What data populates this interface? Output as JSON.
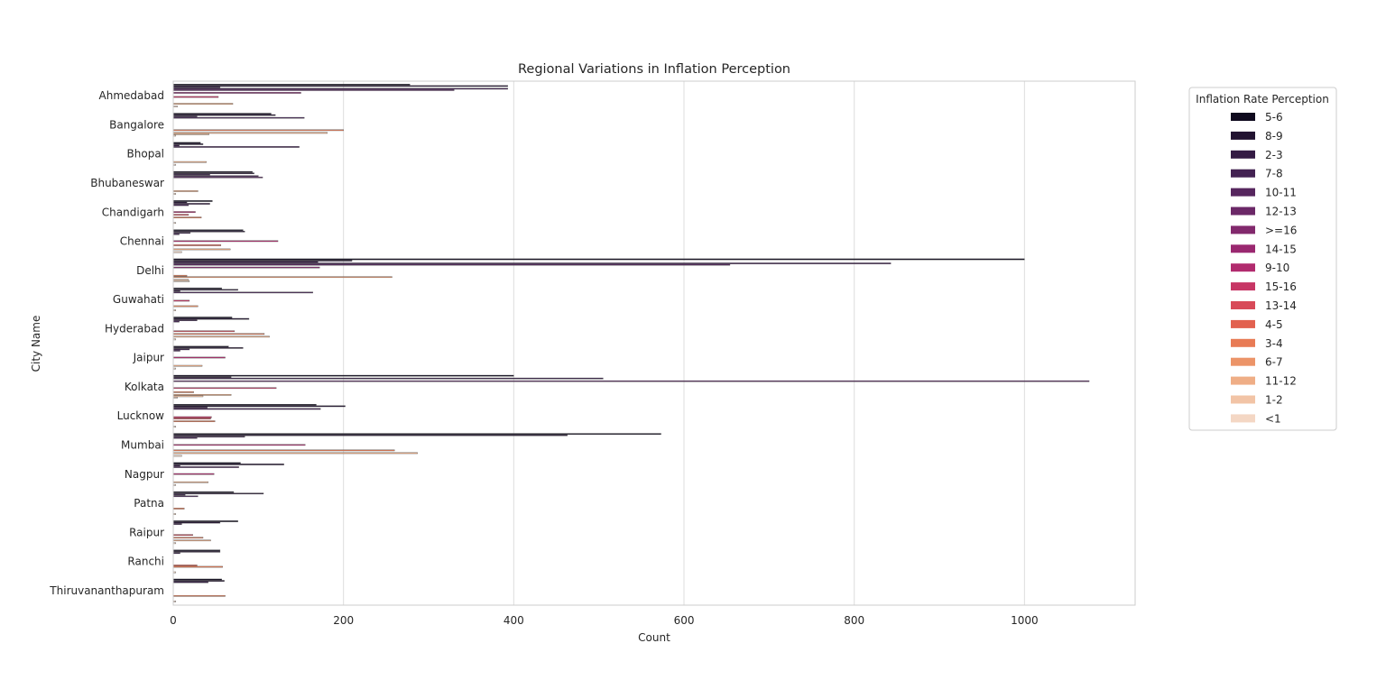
{
  "chart_data": {
    "type": "bar",
    "orientation": "horizontal",
    "title": "Regional Variations in Inflation Perception",
    "xlabel": "Count",
    "ylabel": "City Name",
    "xlim": [
      0,
      1130
    ],
    "xticks": [
      "0",
      "200",
      "400",
      "600",
      "800",
      "1000"
    ],
    "grid": true,
    "legend_placement": "outside-top-right",
    "legend_title": "Inflation Rate Perception",
    "categories": [
      "Ahmedabad",
      "Bangalore",
      "Bhopal",
      "Bhubaneswar",
      "Chandigarh",
      "Chennai",
      "Delhi",
      "Guwahati",
      "Hyderabad",
      "Jaipur",
      "Kolkata",
      "Lucknow",
      "Mumbai",
      "Nagpur",
      "Patna",
      "Raipur",
      "Ranchi",
      "Thiruvananthapuram"
    ],
    "series": [
      {
        "name": "5-6",
        "color": "#0f0a1e",
        "values": [
          278,
          115,
          32,
          93,
          46,
          82,
          1000,
          57,
          69,
          65,
          400,
          168,
          573,
          79,
          71,
          76,
          55,
          57
        ]
      },
      {
        "name": "8-9",
        "color": "#221331",
        "values": [
          393,
          120,
          35,
          95,
          16,
          84,
          210,
          76,
          89,
          82,
          68,
          202,
          463,
          130,
          106,
          55,
          55,
          60
        ]
      },
      {
        "name": "2-3",
        "color": "#341b44",
        "values": [
          55,
          28,
          7,
          43,
          43,
          20,
          170,
          8,
          28,
          19,
          505,
          40,
          84,
          8,
          14,
          10,
          8,
          41
        ]
      },
      {
        "name": "7-8",
        "color": "#432252",
        "values": [
          393,
          154,
          148,
          100,
          18,
          7,
          843,
          164,
          7,
          8,
          0,
          173,
          28,
          77,
          29,
          0,
          0,
          0
        ]
      },
      {
        "name": "10-11",
        "color": "#56265e",
        "values": [
          330,
          0,
          0,
          105,
          0,
          0,
          654,
          0,
          0,
          0,
          1076,
          0,
          0,
          0,
          0,
          0,
          0,
          0
        ]
      },
      {
        "name": "12-13",
        "color": "#6b2867",
        "values": [
          0,
          0,
          0,
          0,
          0,
          0,
          0,
          0,
          0,
          0,
          0,
          0,
          0,
          0,
          0,
          0,
          0,
          0
        ]
      },
      {
        "name": ">=16",
        "color": "#82296d",
        "values": [
          150,
          0,
          0,
          0,
          0,
          0,
          172,
          0,
          0,
          0,
          0,
          0,
          0,
          0,
          0,
          0,
          0,
          0
        ]
      },
      {
        "name": "14-15",
        "color": "#9a2870",
        "values": [
          0,
          0,
          0,
          0,
          0,
          0,
          0,
          0,
          0,
          0,
          0,
          0,
          0,
          0,
          0,
          0,
          0,
          0
        ]
      },
      {
        "name": "9-10",
        "color": "#b12b6e",
        "values": [
          0,
          0,
          0,
          0,
          26,
          123,
          0,
          0,
          0,
          61,
          0,
          0,
          155,
          48,
          0,
          0,
          0,
          0
        ]
      },
      {
        "name": "15-16",
        "color": "#c73665",
        "values": [
          53,
          0,
          0,
          0,
          0,
          0,
          0,
          19,
          0,
          0,
          121,
          45,
          0,
          0,
          0,
          0,
          0,
          0
        ]
      },
      {
        "name": "13-14",
        "color": "#d84a59",
        "values": [
          0,
          0,
          0,
          0,
          18,
          0,
          0,
          0,
          72,
          0,
          0,
          44,
          0,
          0,
          0,
          23,
          0,
          0
        ]
      },
      {
        "name": "4-5",
        "color": "#e2614f",
        "values": [
          0,
          0,
          0,
          0,
          0,
          56,
          0,
          0,
          0,
          0,
          0,
          0,
          0,
          0,
          0,
          0,
          28,
          0
        ]
      },
      {
        "name": "3-4",
        "color": "#e87b55",
        "values": [
          0,
          200,
          0,
          0,
          33,
          0,
          16,
          0,
          107,
          0,
          24,
          49,
          260,
          0,
          13,
          35,
          58,
          61
        ]
      },
      {
        "name": "6-7",
        "color": "#ec9468",
        "values": [
          0,
          0,
          0,
          0,
          0,
          0,
          257,
          29,
          0,
          0,
          0,
          0,
          0,
          0,
          0,
          0,
          0,
          0
        ]
      },
      {
        "name": "11-12",
        "color": "#efae86",
        "values": [
          70,
          181,
          39,
          29,
          0,
          67,
          0,
          0,
          113,
          34,
          68,
          0,
          287,
          41,
          0,
          44,
          0,
          0
        ]
      },
      {
        "name": "1-2",
        "color": "#f2c4a6",
        "values": [
          0,
          42,
          0,
          0,
          0,
          0,
          18,
          0,
          0,
          0,
          35,
          0,
          0,
          0,
          0,
          0,
          0,
          0
        ]
      },
      {
        "name": "<1",
        "color": "#f4d7c4",
        "values": [
          5,
          3,
          3,
          3,
          3,
          10,
          19,
          3,
          3,
          3,
          5,
          3,
          10,
          3,
          3,
          3,
          3,
          3
        ]
      }
    ]
  }
}
